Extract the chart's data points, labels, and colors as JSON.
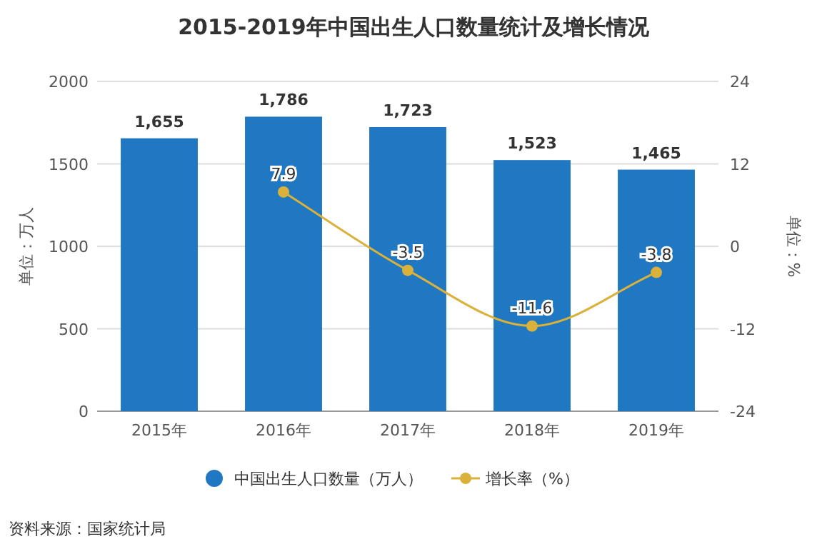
{
  "chart_data": {
    "type": "bar",
    "title": "2015-2019年中国出生人口数量统计及增长情况",
    "ylabel": "单位：万人",
    "y2label": "单位：%",
    "categories": [
      "2015年",
      "2016年",
      "2017年",
      "2018年",
      "2019年"
    ],
    "series": [
      {
        "name": "中国出生人口数量（万人）",
        "color": "#1f78c1",
        "values": [
          1655,
          1786,
          1723,
          1523,
          1465
        ],
        "value_labels": [
          "1,655",
          "1,786",
          "1,723",
          "1,523",
          "1,465"
        ]
      },
      {
        "name": "增长率（%）",
        "type": "line",
        "axis": "y2",
        "color": "#d9b13b",
        "values": [
          null,
          7.9,
          -3.5,
          -11.6,
          -3.8
        ],
        "value_labels": [
          null,
          "7.9",
          "-3.5",
          "-11.6",
          "-3.8"
        ]
      }
    ],
    "ylim": [
      0,
      2000
    ],
    "yticks": [
      0,
      500,
      1000,
      1500,
      2000
    ],
    "y2lim": [
      -24,
      24
    ],
    "y2ticks": [
      -24,
      -12,
      0,
      12,
      24
    ],
    "grid": "y",
    "legend": "bottom",
    "marker": "circle",
    "annotations": [
      "资料来源：国家统计局"
    ]
  }
}
